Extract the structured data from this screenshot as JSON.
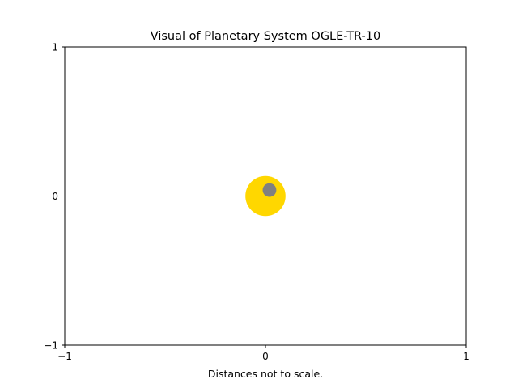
{
  "chart_data": {
    "type": "scatter",
    "title": "Visual of Planetary System OGLE-TR-10",
    "xlabel": "Distances not to scale.",
    "ylabel": "",
    "xlim": [
      -1,
      1
    ],
    "ylim": [
      -1,
      1
    ],
    "x_ticks": [
      -1,
      0,
      1
    ],
    "y_ticks": [
      -1,
      0,
      1
    ],
    "x_tick_labels": [
      "−1",
      "0",
      "1"
    ],
    "y_tick_labels": [
      "−1",
      "0",
      "1"
    ],
    "grid": false,
    "legend": "none",
    "objects": [
      {
        "kind": "star",
        "x": 0.0,
        "y": 0.0,
        "radius": 0.1,
        "color": "#FFD700"
      },
      {
        "kind": "planet",
        "x": 0.02,
        "y": 0.04,
        "radius": 0.034,
        "color": "#808080"
      }
    ]
  }
}
